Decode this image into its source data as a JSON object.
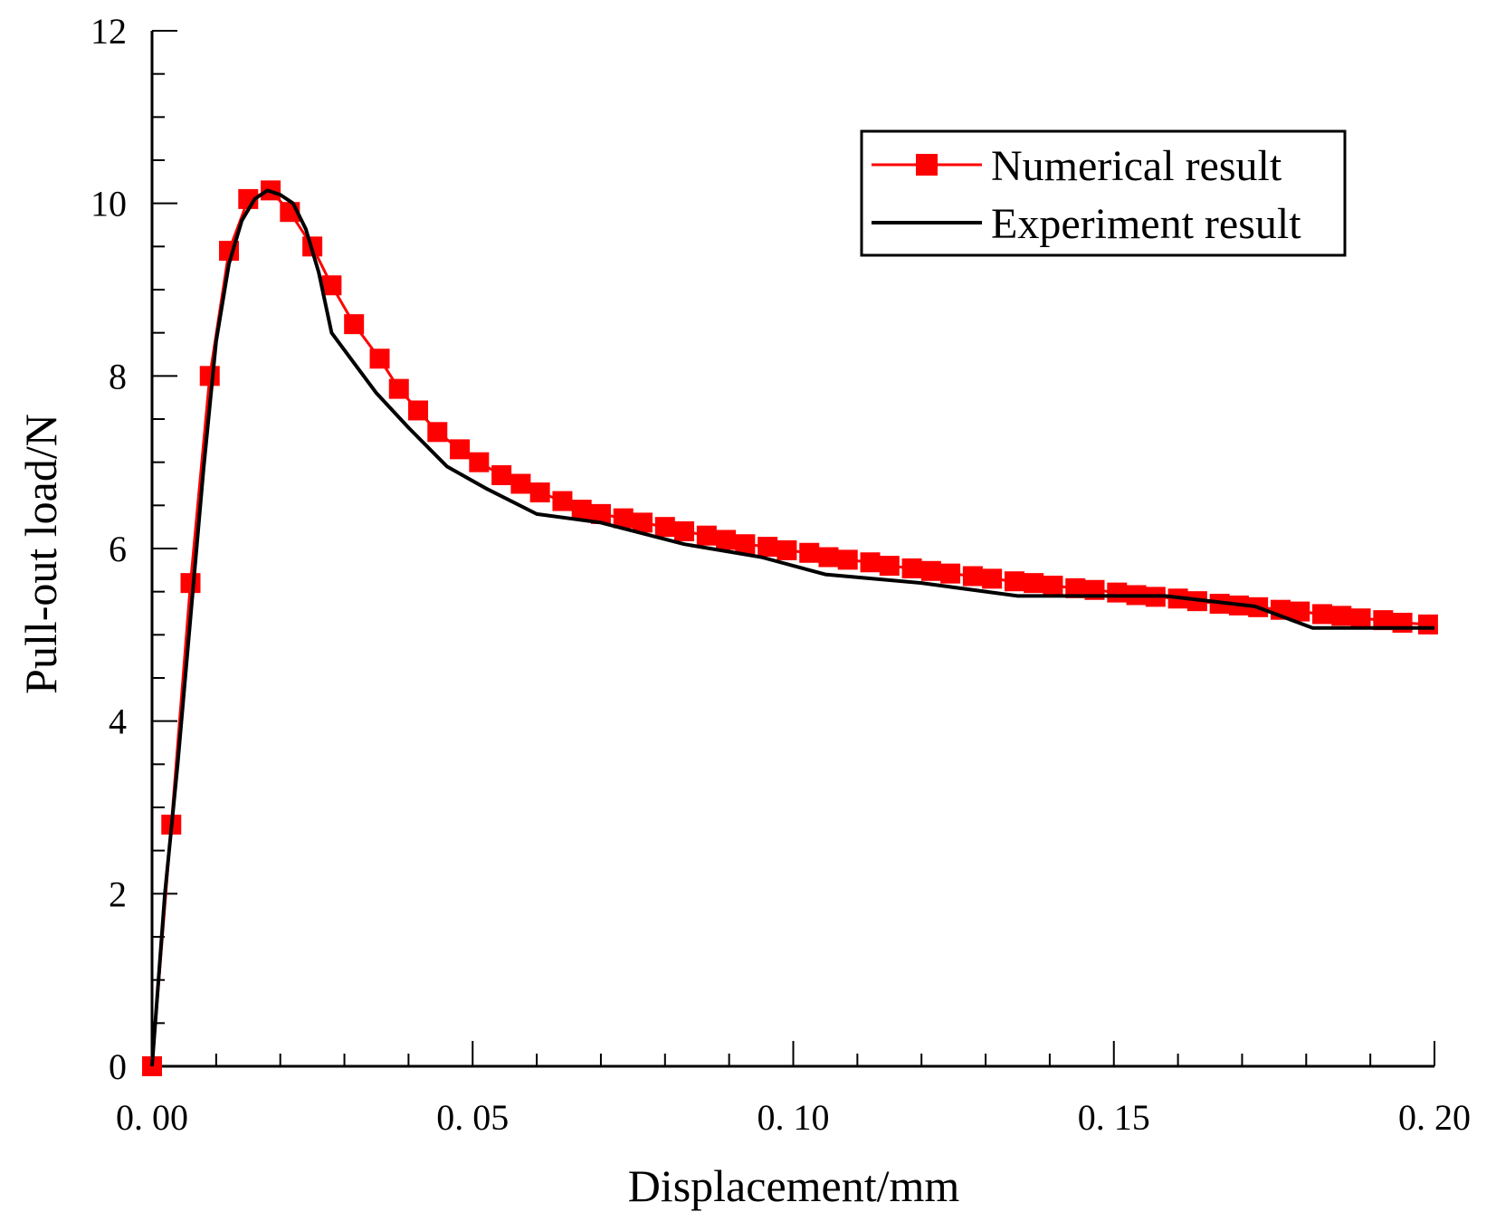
{
  "chart_data": {
    "type": "line",
    "title": "",
    "xlabel": "Displacement/mm",
    "ylabel": "Pull-out load/N",
    "xlim": [
      0,
      0.2
    ],
    "ylim": [
      0,
      12
    ],
    "x_ticks": [
      "0. 00",
      "0. 05",
      "0. 10",
      "0. 15",
      "0. 20"
    ],
    "y_ticks": [
      "0",
      "2",
      "4",
      "6",
      "8",
      "10",
      "12"
    ],
    "grid": false,
    "legend_position": "top-right",
    "series": [
      {
        "name": "Numerical result",
        "color": "#ff0000",
        "marker": "square",
        "x": [
          0.0,
          0.003,
          0.006,
          0.009,
          0.012,
          0.015,
          0.0185,
          0.0215,
          0.025,
          0.028,
          0.0315,
          0.0355,
          0.0385,
          0.0415,
          0.0445,
          0.048,
          0.051,
          0.0545,
          0.0575,
          0.0605,
          0.064,
          0.067,
          0.07,
          0.0735,
          0.0765,
          0.08,
          0.083,
          0.0865,
          0.0895,
          0.0925,
          0.096,
          0.099,
          0.1025,
          0.1055,
          0.1085,
          0.112,
          0.115,
          0.1185,
          0.1215,
          0.1245,
          0.128,
          0.131,
          0.1345,
          0.1375,
          0.1405,
          0.144,
          0.147,
          0.1505,
          0.1535,
          0.1565,
          0.16,
          0.163,
          0.1665,
          0.1695,
          0.1725,
          0.176,
          0.179,
          0.1825,
          0.1855,
          0.1885,
          0.192,
          0.195,
          0.199
        ],
        "y": [
          0.0,
          2.8,
          5.6,
          8.0,
          9.45,
          10.05,
          10.15,
          9.9,
          9.5,
          9.05,
          8.6,
          8.2,
          7.85,
          7.6,
          7.35,
          7.15,
          7.0,
          6.85,
          6.75,
          6.65,
          6.55,
          6.45,
          6.4,
          6.35,
          6.3,
          6.25,
          6.2,
          6.15,
          6.1,
          6.05,
          6.02,
          5.98,
          5.95,
          5.9,
          5.87,
          5.84,
          5.8,
          5.77,
          5.74,
          5.71,
          5.68,
          5.65,
          5.62,
          5.6,
          5.57,
          5.54,
          5.52,
          5.49,
          5.46,
          5.44,
          5.42,
          5.39,
          5.36,
          5.34,
          5.32,
          5.29,
          5.27,
          5.24,
          5.22,
          5.19,
          5.17,
          5.14,
          5.12
        ]
      },
      {
        "name": "Experiment result",
        "color": "#000000",
        "marker": "none",
        "x": [
          0.0,
          0.002,
          0.004,
          0.006,
          0.008,
          0.01,
          0.012,
          0.014,
          0.016,
          0.018,
          0.02,
          0.022,
          0.024,
          0.026,
          0.028,
          0.03,
          0.032,
          0.035,
          0.04,
          0.046,
          0.052,
          0.06,
          0.07,
          0.083,
          0.095,
          0.105,
          0.12,
          0.135,
          0.145,
          0.158,
          0.172,
          0.181,
          0.2
        ],
        "y": [
          0.0,
          2.0,
          3.5,
          5.2,
          6.9,
          8.4,
          9.3,
          9.8,
          10.05,
          10.15,
          10.1,
          10.0,
          9.7,
          9.2,
          8.5,
          8.3,
          8.1,
          7.8,
          7.4,
          6.95,
          6.7,
          6.4,
          6.3,
          6.05,
          5.9,
          5.7,
          5.6,
          5.45,
          5.45,
          5.45,
          5.33,
          5.08,
          5.08
        ]
      }
    ]
  }
}
